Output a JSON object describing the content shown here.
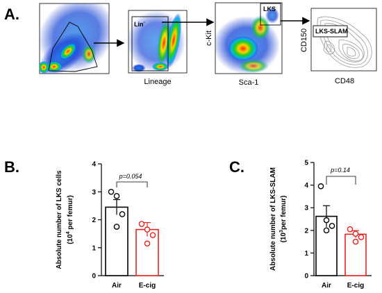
{
  "panel_letters": {
    "a": "A.",
    "b": "B.",
    "c": "C."
  },
  "flow": {
    "plot1": {
      "xlabel": "",
      "ylabel": ""
    },
    "plot2": {
      "xlabel": "Lineage",
      "gate_main": "Lin",
      "gate_sup": "-"
    },
    "plot3": {
      "xlabel": "Sca-1",
      "ylabel": "c-Kit",
      "gate": "LKS"
    },
    "plot4": {
      "xlabel": "CD48",
      "ylabel": "CD150",
      "gate": "LKS-SLAM"
    }
  },
  "colors": {
    "air": "#000000",
    "ecig": "#e8231f"
  },
  "chart_data": [
    {
      "type": "bar",
      "panel": "B.",
      "categories": [
        "Air",
        "E-cig"
      ],
      "values": [
        2.45,
        1.65
      ],
      "errors": [
        0.27,
        0.25
      ],
      "points": [
        [
          3.0,
          2.85,
          2.2,
          1.75
        ],
        [
          1.85,
          1.65,
          1.45,
          1.15
        ]
      ],
      "ylabel_line1": "Absolute number of LKS cells",
      "ylabel_line2_pre": "(10",
      "ylabel_sup": "4",
      "ylabel_line2_post": " per femur)",
      "ylim": [
        0,
        4
      ],
      "yticks": [
        "0",
        "1",
        "2",
        "3",
        "4"
      ],
      "annotation": "p=0.054"
    },
    {
      "type": "bar",
      "panel": "C.",
      "categories": [
        "Air",
        "E-cig"
      ],
      "values": [
        2.62,
        1.83
      ],
      "errors": [
        0.47,
        0.16
      ],
      "points": [
        [
          3.95,
          2.45,
          2.2,
          2.0
        ],
        [
          2.05,
          1.85,
          1.7,
          1.5
        ]
      ],
      "ylabel_line1": "Absolute number of LKS-SLAM",
      "ylabel_line2_pre": "(10",
      "ylabel_sup": "3",
      "ylabel_line2_post": "per femur)",
      "ylim": [
        0,
        5
      ],
      "yticks": [
        "0",
        "1",
        "2",
        "3",
        "4",
        "5"
      ],
      "annotation": "p=0.14"
    }
  ]
}
